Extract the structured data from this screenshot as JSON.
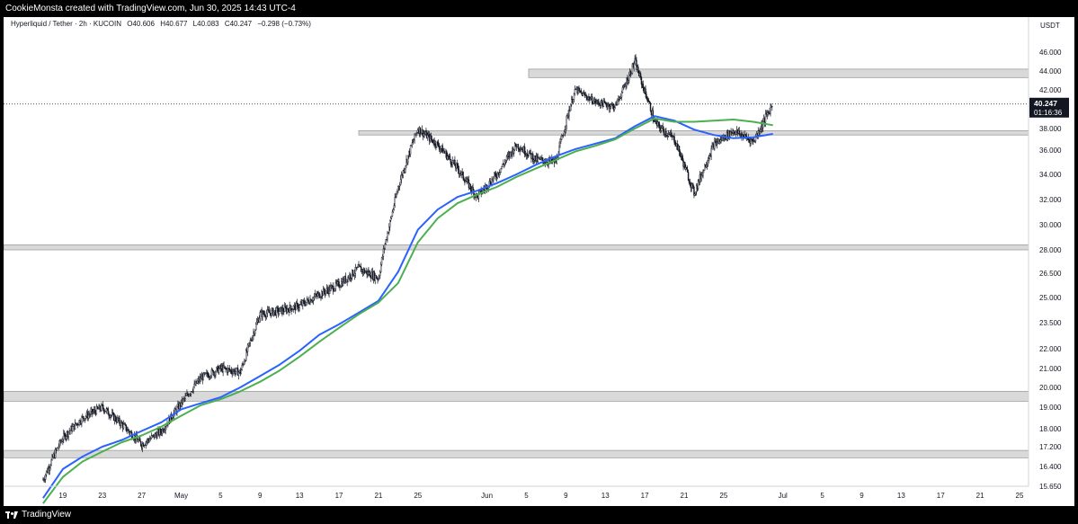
{
  "header": {
    "caption": "CookieMonsta created with TradingView.com, Jun 30, 2025 14:43 UTC-4"
  },
  "legend": {
    "symbol": "Hyperliquid / Tether · 2h · KUCOIN",
    "open": "O40.606",
    "high": "H40.677",
    "low": "L40.083",
    "close": "C40.247",
    "change": "−0.298 (−0.73%)"
  },
  "footer": {
    "brand": "TradingView"
  },
  "colors": {
    "up_down_candles": "#131722",
    "ma_fast": "#2962ff",
    "ma_slow": "#4caf50",
    "zones": "#d9d9d9",
    "last_price_label": "#131722"
  },
  "chart_data": {
    "type": "line",
    "currency_label": "USDT",
    "y_axis_ticks": [
      "46.000",
      "44.000",
      "42.000",
      "40.000",
      "38.000",
      "36.000",
      "34.000",
      "32.000",
      "30.000",
      "28.000",
      "26.500",
      "25.000",
      "23.500",
      "22.000",
      "21.000",
      "20.000",
      "19.000",
      "18.000",
      "17.200",
      "16.400",
      "15.650"
    ],
    "x_axis_ticks": [
      "19",
      "23",
      "27",
      "May",
      "5",
      "9",
      "13",
      "17",
      "21",
      "25",
      "Jun",
      "5",
      "9",
      "13",
      "17",
      "21",
      "25",
      "Jul",
      "5",
      "9",
      "13",
      "17",
      "21",
      "25"
    ],
    "last_price": "40.247",
    "countdown": "01:16:36",
    "price_path": {
      "x": [
        "Apr 17",
        "Apr 19",
        "Apr 21",
        "Apr 23",
        "Apr 25",
        "Apr 27",
        "Apr 29",
        "May 1",
        "May 3",
        "May 5",
        "May 7",
        "May 9",
        "May 11",
        "May 13",
        "May 15",
        "May 17",
        "May 19",
        "May 21",
        "May 23",
        "May 25",
        "May 27",
        "May 29",
        "May 31",
        "Jun 2",
        "Jun 4",
        "Jun 6",
        "Jun 8",
        "Jun 10",
        "Jun 12",
        "Jun 14",
        "Jun 16",
        "Jun 18",
        "Jun 20",
        "Jun 22",
        "Jun 24",
        "Jun 26",
        "Jun 28",
        "Jun 30"
      ],
      "y": [
        15.9,
        17.6,
        18.5,
        19.0,
        18.2,
        17.3,
        17.9,
        19.2,
        20.5,
        21.0,
        20.8,
        24.0,
        24.2,
        24.5,
        25.2,
        25.8,
        26.8,
        26.2,
        33.0,
        38.0,
        36.5,
        34.5,
        32.2,
        34.0,
        36.5,
        35.2,
        35.0,
        42.0,
        40.5,
        40.0,
        45.0,
        38.5,
        37.0,
        32.5,
        36.5,
        37.8,
        36.8,
        40.25
      ]
    },
    "series": [
      {
        "values": [
          15.2,
          16.3,
          16.8,
          17.2,
          17.5,
          17.9,
          18.3,
          18.9,
          19.2,
          19.5,
          20.0,
          20.6,
          21.2,
          21.9,
          22.8,
          23.4,
          24.1,
          24.8,
          26.6,
          29.6,
          31.2,
          32.2,
          32.7,
          33.3,
          34.0,
          34.8,
          35.5,
          36.1,
          36.6,
          37.1,
          38.2,
          39.1,
          38.7,
          37.9,
          37.4,
          37.1,
          37.2,
          37.5
        ]
      },
      {
        "values": [
          15.0,
          16.0,
          16.6,
          17.0,
          17.4,
          17.7,
          18.1,
          18.6,
          19.1,
          19.4,
          19.8,
          20.3,
          20.9,
          21.6,
          22.4,
          23.2,
          24.0,
          24.7,
          25.9,
          28.6,
          30.5,
          31.7,
          32.4,
          33.0,
          33.8,
          34.5,
          35.2,
          35.9,
          36.4,
          37.0,
          38.0,
          38.9,
          38.6,
          38.6,
          38.7,
          38.8,
          38.6,
          38.3
        ]
      }
    ],
    "zones": [
      [
        43.3,
        44.2
      ],
      [
        37.4,
        37.8
      ],
      [
        28.0,
        28.4
      ],
      [
        19.3,
        19.8
      ],
      [
        16.75,
        17.05
      ]
    ]
  }
}
